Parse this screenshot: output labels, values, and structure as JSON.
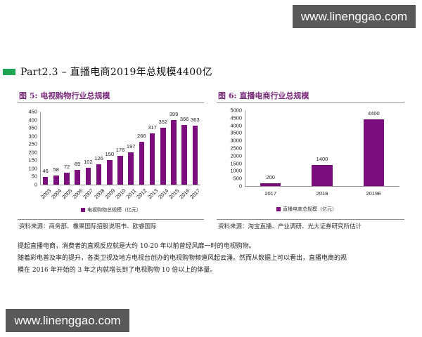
{
  "watermarks": {
    "top": "www.linenggao.com",
    "bottom": "www.linenggao.com"
  },
  "section": {
    "title": "Part2.3  –  直播电商2019年总规模4400亿",
    "bar_color": "#1fa453"
  },
  "figures": {
    "left": {
      "title": "图 5: 电视购物行业总规模",
      "legend": "电视购物总规模（亿元）",
      "source": "资料来源：商务部、橡果国际招股说明书、欧睿国际"
    },
    "right": {
      "title": "图 6: 直播电商行业总规模",
      "legend": "直播电商总规模（亿元）",
      "source": "资料来源：淘宝直播、产业调研、光大证券研究所估计"
    }
  },
  "paragraphs": [
    "提起直播电商，消费者的直观反应就是大约 10-20 年以前曾经风靡一时的电视购物。",
    "随着彩电普及率的提升，各类卫视及地方电视台创办的电视购物频道风起云涌。然而从数据上可以看出，直播电商的规",
    "模在 2016 年开始的 3 年之内就增长到了电视购物 10 倍以上的体量。"
  ],
  "chart_data": [
    {
      "type": "bar",
      "title": "图 5: 电视购物行业总规模",
      "categories": [
        "2003",
        "2004",
        "2005",
        "2006",
        "2007",
        "2008",
        "2009",
        "2010",
        "2011",
        "2012",
        "2013",
        "2014",
        "2015",
        "2016",
        "2017"
      ],
      "values": [
        46,
        58,
        72,
        89,
        102,
        126,
        150,
        176,
        197,
        266,
        317,
        352,
        399,
        366,
        363
      ],
      "series": [
        {
          "name": "电视购物总规模（亿元）",
          "values": [
            46,
            58,
            72,
            89,
            102,
            126,
            150,
            176,
            197,
            266,
            317,
            352,
            399,
            366,
            363
          ]
        }
      ],
      "yticks": [
        0,
        50,
        100,
        150,
        200,
        250,
        300,
        350,
        400,
        450
      ],
      "ylim": [
        0,
        450
      ],
      "xlabel": "",
      "ylabel": "",
      "legend_position": "bottom",
      "grid": false,
      "color": "#7b0d7d"
    },
    {
      "type": "bar",
      "title": "图 6: 直播电商行业总规模",
      "categories": [
        "2017",
        "2018",
        "2019E"
      ],
      "values": [
        200,
        1400,
        4400
      ],
      "series": [
        {
          "name": "直播电商总规模（亿元）",
          "values": [
            200,
            1400,
            4400
          ]
        }
      ],
      "yticks": [
        0,
        500,
        1000,
        1500,
        2000,
        2500,
        3000,
        3500,
        4000,
        4500,
        5000
      ],
      "ylim": [
        0,
        5000
      ],
      "xlabel": "",
      "ylabel": "",
      "legend_position": "bottom",
      "grid": false,
      "color": "#7b0d7d"
    }
  ]
}
